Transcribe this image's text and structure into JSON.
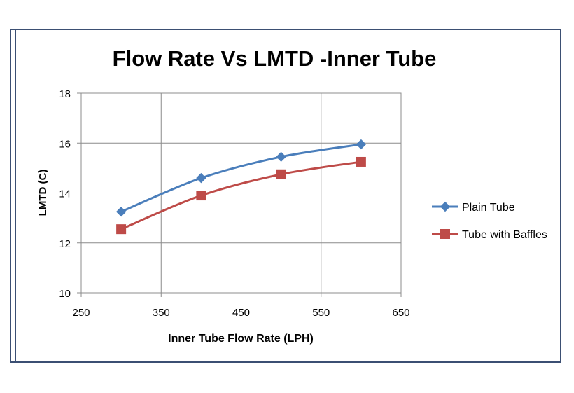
{
  "chart_data": {
    "type": "line",
    "title": "Flow Rate Vs LMTD -Inner Tube",
    "xlabel": "Inner Tube Flow Rate (LPH)",
    "ylabel": "LMTD (C)",
    "xlim": [
      250,
      650
    ],
    "ylim": [
      10,
      18
    ],
    "xticks": [
      250,
      350,
      450,
      550,
      650
    ],
    "yticks": [
      10,
      12,
      14,
      16,
      18
    ],
    "grid": true,
    "legend_position": "right",
    "series": [
      {
        "name": "Plain Tube",
        "color": "#4a7ebb",
        "marker": "diamond",
        "x": [
          300,
          400,
          500,
          600
        ],
        "y": [
          13.25,
          14.6,
          15.45,
          15.95
        ]
      },
      {
        "name": "Tube with Baffles",
        "color": "#be4b48",
        "marker": "square",
        "x": [
          300,
          400,
          500,
          600
        ],
        "y": [
          12.55,
          13.9,
          14.75,
          15.25
        ]
      }
    ]
  }
}
